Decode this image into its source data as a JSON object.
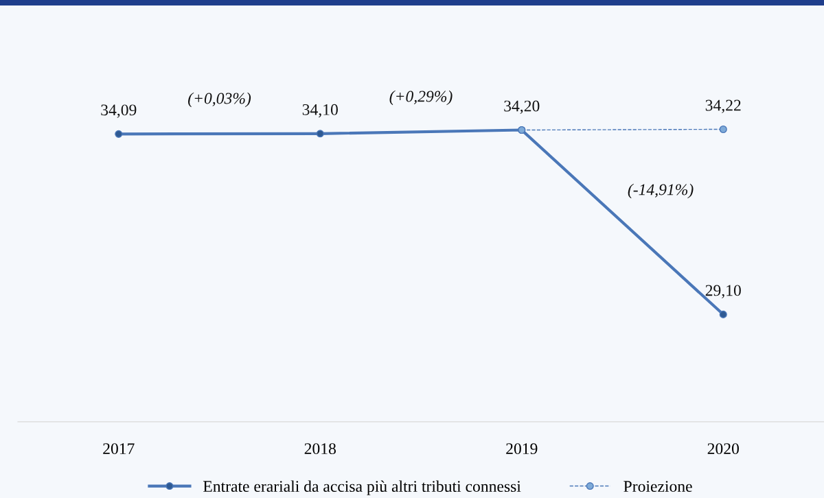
{
  "chart_data": {
    "type": "line",
    "categories": [
      "2017",
      "2018",
      "2019",
      "2020"
    ],
    "series": [
      {
        "name": "Entrate erariali da accisa più altri tributi connessi",
        "color": "#4a77b8",
        "line_style": "solid",
        "values": [
          34.09,
          34.1,
          34.2,
          29.1
        ],
        "value_labels": [
          "34,09",
          "34,10",
          "34,20",
          "29,10"
        ]
      },
      {
        "name": "Proiezione",
        "color": "#4a77b8",
        "line_style": "dashed",
        "values": [
          null,
          null,
          34.2,
          34.22
        ],
        "value_labels": [
          null,
          null,
          null,
          "34,22"
        ]
      }
    ],
    "annotations": [
      "(+0,03%)",
      "(+0,29%)",
      "(-14,91%)"
    ],
    "tick_labels": "x",
    "marker": "circle",
    "grid": false,
    "legend": "bottom"
  }
}
